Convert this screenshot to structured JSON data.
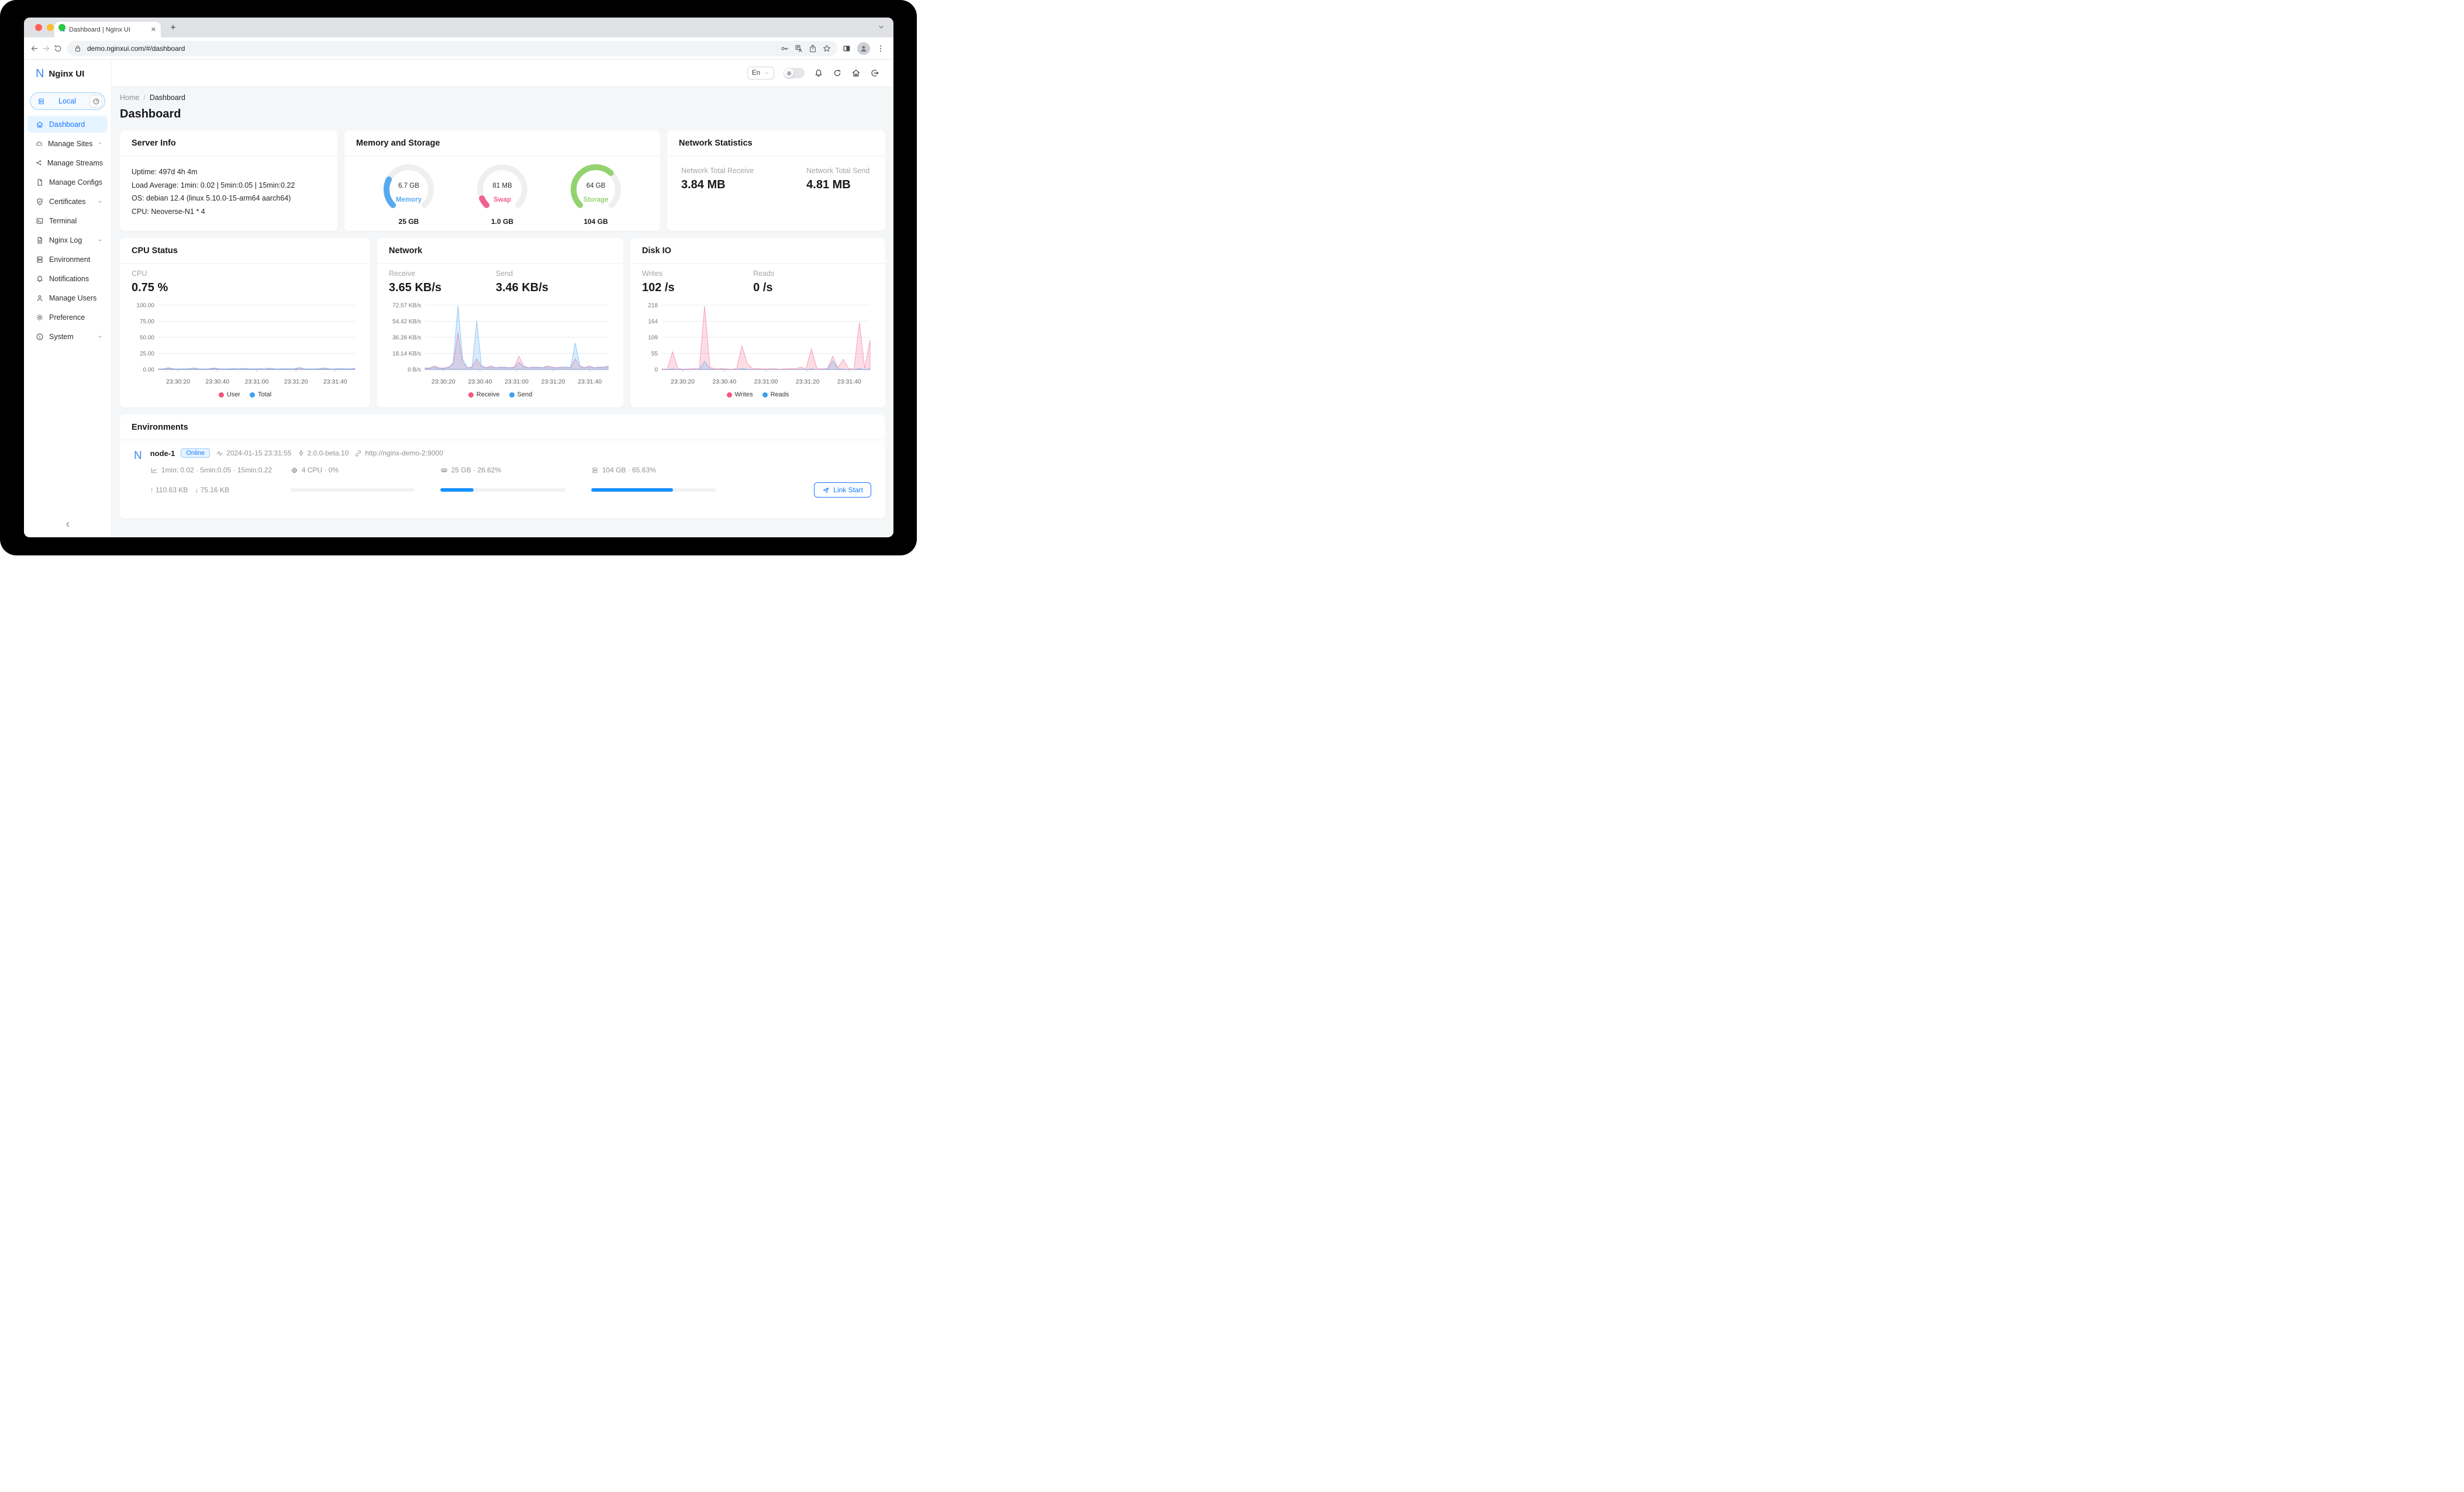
{
  "browser": {
    "tab_title": "Dashboard | Nginx UI",
    "tab_favicon": "N",
    "url": "demo.nginxui.com/#/dashboard"
  },
  "app": {
    "logo_letter": "N",
    "logo_text": "Nginx UI",
    "node_selector": "Local",
    "language": "En"
  },
  "sidebar": {
    "items": [
      {
        "label": "Dashboard",
        "icon": "home",
        "active": true,
        "chevron": false
      },
      {
        "label": "Manage Sites",
        "icon": "cloud",
        "active": false,
        "chevron": true
      },
      {
        "label": "Manage Streams",
        "icon": "share",
        "active": false,
        "chevron": false
      },
      {
        "label": "Manage Configs",
        "icon": "file",
        "active": false,
        "chevron": false
      },
      {
        "label": "Certificates",
        "icon": "shield-check",
        "active": false,
        "chevron": true
      },
      {
        "label": "Terminal",
        "icon": "terminal",
        "active": false,
        "chevron": false
      },
      {
        "label": "Nginx Log",
        "icon": "file-text",
        "active": false,
        "chevron": true
      },
      {
        "label": "Environment",
        "icon": "server",
        "active": false,
        "chevron": false
      },
      {
        "label": "Notifications",
        "icon": "bell",
        "active": false,
        "chevron": false
      },
      {
        "label": "Manage Users",
        "icon": "user",
        "active": false,
        "chevron": false
      },
      {
        "label": "Preference",
        "icon": "gear",
        "active": false,
        "chevron": false
      },
      {
        "label": "System",
        "icon": "info",
        "active": false,
        "chevron": true
      }
    ]
  },
  "header_icons": [
    {
      "name": "bell"
    },
    {
      "name": "refresh"
    },
    {
      "name": "home"
    },
    {
      "name": "logout"
    }
  ],
  "breadcrumb": {
    "home": "Home",
    "current": "Dashboard"
  },
  "page": {
    "title": "Dashboard"
  },
  "server_info": {
    "title": "Server Info",
    "lines": [
      "Uptime: 497d 4h 4m",
      "Load Average: 1min: 0.02 | 5min:0.05 | 15min:0.22",
      "OS: debian 12.4 (linux 5.10.0-15-arm64 aarch64)",
      "CPU: Neoverse-N1 * 4"
    ]
  },
  "memory_storage": {
    "title": "Memory and Storage",
    "gauges": [
      {
        "value": "6.7 GB",
        "label": "Memory",
        "total": "25 GB",
        "percent": 26.62,
        "color": "#57a9f0"
      },
      {
        "value": "81 MB",
        "label": "Swap",
        "total": "1.0 GB",
        "percent": 7.9,
        "color": "#f2608e"
      },
      {
        "value": "64 GB",
        "label": "Storage",
        "total": "104 GB",
        "percent": 65.63,
        "color": "#93d36f"
      }
    ]
  },
  "network_stats": {
    "title": "Network Statistics",
    "items": [
      {
        "label": "Network Total Receive",
        "value": "3.84 MB"
      },
      {
        "label": "Network Total Send",
        "value": "4.81 MB"
      }
    ]
  },
  "chart_data": [
    {
      "id": "cpu",
      "type": "area",
      "title": "CPU Status",
      "stats": [
        {
          "label": "CPU",
          "value": "0.75 %"
        }
      ],
      "x_ticks": [
        "23:30:20",
        "23:30:40",
        "23:31:00",
        "23:31:20",
        "23:31:40"
      ],
      "y_ticks": [
        "100.00",
        "75.00",
        "50.00",
        "25.00",
        "0.00"
      ],
      "y_max": 100,
      "legend_position": "bottom",
      "grid": true,
      "series": [
        {
          "name": "User",
          "color": "#f2557f",
          "values": [
            0.4,
            0.5,
            1.8,
            0.5,
            0.4,
            0.5,
            0.6,
            1.2,
            0.5,
            0.4,
            0.5,
            1.5,
            0.6,
            0.4,
            0.5,
            0.6,
            0.5,
            0.8,
            0.4,
            0.5,
            0.6,
            0.5,
            1.0,
            0.5,
            0.4,
            0.6,
            0.5,
            0.5,
            1.6,
            0.5,
            0.4,
            0.5,
            0.6,
            1.2,
            0.5,
            0.4,
            0.7,
            0.5,
            0.5,
            0.8
          ]
        },
        {
          "name": "Total",
          "color": "#3ba0f2",
          "values": [
            1.0,
            1.2,
            2.8,
            1.1,
            0.9,
            1.1,
            1.3,
            2.6,
            1.2,
            0.9,
            1.1,
            2.4,
            1.3,
            1.0,
            1.1,
            1.4,
            1.2,
            1.8,
            1.0,
            1.1,
            1.3,
            1.2,
            2.2,
            1.1,
            1.0,
            1.3,
            1.1,
            1.2,
            3.4,
            1.2,
            1.0,
            1.1,
            1.4,
            2.6,
            1.2,
            1.0,
            1.6,
            1.1,
            1.2,
            1.9
          ]
        }
      ]
    },
    {
      "id": "net",
      "type": "area",
      "title": "Network",
      "stats": [
        {
          "label": "Receive",
          "value": "3.65 KB/s"
        },
        {
          "label": "Send",
          "value": "3.46 KB/s"
        }
      ],
      "x_ticks": [
        "23:30:20",
        "23:30:40",
        "23:31:00",
        "23:31:20",
        "23:31:40"
      ],
      "y_ticks": [
        "72.57 KB/s",
        "54.42 KB/s",
        "36.28 KB/s",
        "18.14 KB/s",
        "0 B/s"
      ],
      "y_max": 72.57,
      "legend_position": "bottom",
      "grid": true,
      "series": [
        {
          "name": "Receive",
          "color": "#f2557f",
          "values": [
            2,
            1,
            4,
            2,
            1,
            3,
            6,
            42,
            8,
            2,
            3,
            12,
            3,
            2,
            4,
            2,
            3,
            2,
            2,
            3,
            15,
            4,
            2,
            3,
            2,
            2,
            4,
            3,
            2,
            3,
            2,
            2,
            12,
            3,
            2,
            4,
            2,
            3,
            2,
            4
          ]
        },
        {
          "name": "Send",
          "color": "#3ba0f2",
          "values": [
            1,
            2,
            3,
            1,
            2,
            2,
            8,
            72,
            12,
            2,
            2,
            55,
            5,
            2,
            3,
            2,
            2,
            3,
            2,
            2,
            8,
            3,
            2,
            2,
            3,
            2,
            3,
            2,
            2,
            2,
            3,
            2,
            30,
            4,
            2,
            3,
            2,
            2,
            3,
            3
          ]
        }
      ]
    },
    {
      "id": "disk",
      "type": "area",
      "title": "Disk IO",
      "stats": [
        {
          "label": "Writes",
          "value": "102 /s"
        },
        {
          "label": "Reads",
          "value": "0 /s"
        }
      ],
      "x_ticks": [
        "23:30:20",
        "23:30:40",
        "23:31:00",
        "23:31:20",
        "23:31:40"
      ],
      "y_ticks": [
        "218",
        "164",
        "109",
        "55",
        "0"
      ],
      "y_max": 218,
      "legend_position": "bottom",
      "grid": true,
      "series": [
        {
          "name": "Writes",
          "color": "#f2557f",
          "values": [
            2,
            1,
            60,
            3,
            1,
            2,
            3,
            2,
            215,
            8,
            2,
            3,
            2,
            1,
            3,
            80,
            20,
            2,
            3,
            2,
            2,
            3,
            1,
            2,
            3,
            2,
            8,
            2,
            70,
            5,
            2,
            3,
            45,
            6,
            35,
            3,
            2,
            160,
            4,
            100
          ]
        },
        {
          "name": "Reads",
          "color": "#3ba0f2",
          "values": [
            0,
            0,
            2,
            0,
            0,
            0,
            0,
            0,
            28,
            2,
            0,
            0,
            0,
            0,
            0,
            3,
            1,
            0,
            0,
            0,
            0,
            0,
            0,
            0,
            0,
            0,
            1,
            0,
            2,
            0,
            0,
            0,
            30,
            2,
            1,
            0,
            0,
            3,
            0,
            2
          ]
        }
      ]
    }
  ],
  "environments": {
    "title": "Environments",
    "node": {
      "logo_letter": "N",
      "name": "node-1",
      "status": "Online",
      "checked_at": "2024-01-15 23:31:55",
      "version": "2.0.0-beta.10",
      "url": "http://nginx-demo-2:9000",
      "load_avg": "1min: 0.02 · 5min:0.05 · 15min:0.22",
      "cpu": "4 CPU · 0%",
      "cpu_pct": 0,
      "memory": "25 GB · 26.62%",
      "memory_pct": 26.62,
      "storage": "104 GB · 65.63%",
      "storage_pct": 65.63,
      "upload": "110.63 KB",
      "download": "75.16 KB",
      "action_label": "Link Start"
    }
  },
  "colors": {
    "primary": "#1677ff",
    "pink": "#f2557f",
    "blue": "#3ba0f2",
    "green": "#93d36f",
    "progress": "#1890ff"
  }
}
